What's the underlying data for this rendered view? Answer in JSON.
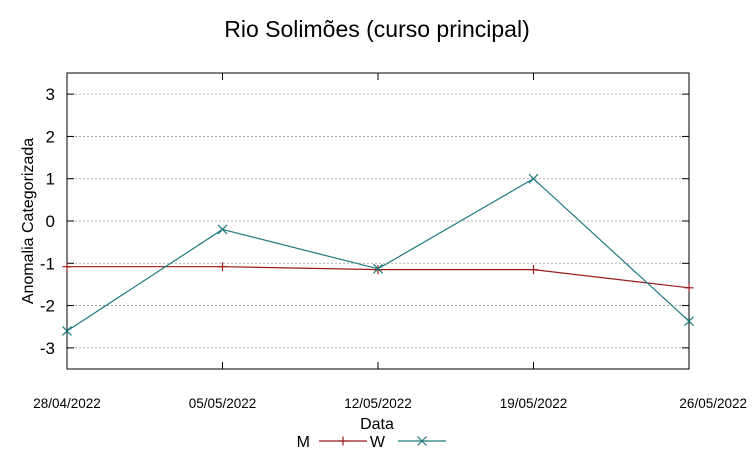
{
  "chart_data": {
    "type": "line",
    "title": "Rio Solimões (curso principal)",
    "xlabel": "Data",
    "ylabel": "Anomalia Categorizada",
    "x": [
      "28/04/2022",
      "05/05/2022",
      "12/05/2022",
      "19/05/2022",
      "26/05/2022"
    ],
    "ylim": [
      -3.5,
      3.5
    ],
    "yticks": [
      "3",
      "2",
      "1",
      "0",
      "-1",
      "-2",
      "-3"
    ],
    "grid": true,
    "legend_position": "bottom",
    "series": [
      {
        "name": "M",
        "color": "#9b1b1b",
        "marker": "plus",
        "values": [
          -1.08,
          -1.08,
          -1.15,
          -1.15,
          -1.58
        ]
      },
      {
        "name": "W",
        "color": "#1f7a7f",
        "marker": "x",
        "values": [
          -2.6,
          -0.2,
          -1.13,
          1.0,
          -2.37
        ]
      }
    ]
  }
}
